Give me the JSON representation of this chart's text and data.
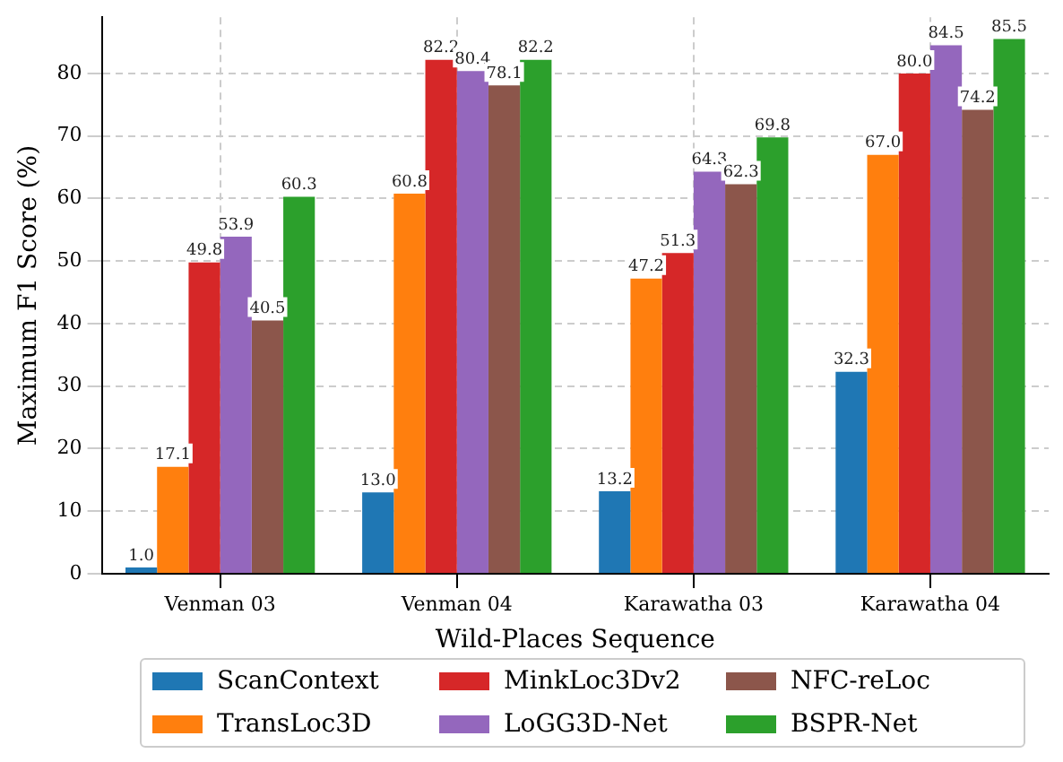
{
  "chart_data": {
    "type": "bar",
    "xlabel": "Wild-Places Sequence",
    "ylabel": "Maximum F1 Score (%)",
    "categories": [
      "Venman 03",
      "Venman 04",
      "Karawatha 03",
      "Karawatha 04"
    ],
    "series": [
      {
        "name": "ScanContext",
        "color": "#1f77b4",
        "values": [
          1.0,
          13.0,
          13.2,
          32.3
        ],
        "value_labels": [
          "1.0",
          "13.0",
          "13.2",
          "32.3"
        ]
      },
      {
        "name": "TransLoc3D",
        "color": "#ff7f0e",
        "values": [
          17.1,
          60.8,
          47.2,
          67.0
        ],
        "value_labels": [
          "17.1",
          "60.8",
          "47.2",
          "67.0"
        ]
      },
      {
        "name": "MinkLoc3Dv2",
        "color": "#d62728",
        "values": [
          49.8,
          82.2,
          51.3,
          80.0
        ],
        "value_labels": [
          "49.8",
          "82.2",
          "51.3",
          "80.0"
        ]
      },
      {
        "name": "LoGG3D-Net",
        "color": "#9467bd",
        "values": [
          53.9,
          80.4,
          64.3,
          84.5
        ],
        "value_labels": [
          "53.9",
          "80.4",
          "64.3",
          "84.5"
        ]
      },
      {
        "name": "NFC-reLoc",
        "color": "#8c564b",
        "values": [
          40.5,
          78.1,
          62.3,
          74.2
        ],
        "value_labels": [
          "40.5",
          "78.1",
          "62.3",
          "74.2"
        ]
      },
      {
        "name": "BSPR-Net",
        "color": "#2ca02c",
        "values": [
          60.3,
          82.2,
          69.8,
          85.5
        ],
        "value_labels": [
          "60.3",
          "82.2",
          "69.8",
          "85.5"
        ]
      }
    ],
    "ylim": [
      0,
      89
    ],
    "yticks": [
      0,
      10,
      20,
      30,
      40,
      50,
      60,
      70,
      80
    ],
    "grid": true,
    "legend": "bottom"
  }
}
